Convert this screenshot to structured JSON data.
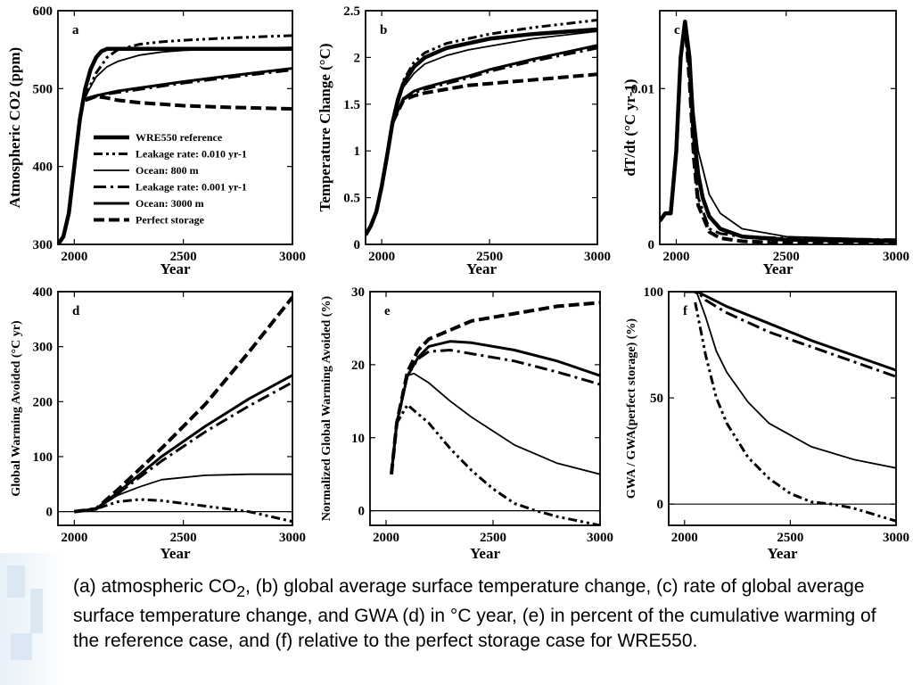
{
  "colors": {
    "line": "#000000",
    "background": "#ffffff"
  },
  "caption": {
    "part1": "(a) atmospheric CO",
    "sub": "2",
    "part2": ", (b) global average surface temperature change, (c) rate of global average surface temperature change, and GWA (d) in °C year, (e) in percent of the cumulative warming of the reference case, and (f) relative to the perfect storage case for WRE550."
  },
  "chart_data": [
    {
      "panel": "a",
      "type": "line",
      "xlabel": "Year",
      "ylabel": "Atmospheric CO2 (ppm)",
      "xlim": [
        1925,
        3000
      ],
      "ylim": [
        300,
        600
      ],
      "xticks": [
        2000,
        2500,
        3000
      ],
      "yticks": [
        300,
        400,
        500,
        600
      ],
      "legend": {
        "placement": "center-left",
        "entries": [
          {
            "label": "WRE550 reference",
            "style": "thick"
          },
          {
            "label": "Leakage rate: 0.010 yr-1",
            "style": "dashdotdot"
          },
          {
            "label": "Ocean:  800 m",
            "style": "thin"
          },
          {
            "label": "Leakage rate: 0.001 yr-1",
            "style": "dashdot"
          },
          {
            "label": "Ocean: 3000 m",
            "style": "solid"
          },
          {
            "label": "Perfect storage",
            "style": "dashed"
          }
        ]
      },
      "series": [
        {
          "style": "thick",
          "x": [
            1925,
            1950,
            1975,
            2000,
            2025,
            2050,
            2075,
            2100,
            2125,
            2150,
            2175,
            2200,
            2300,
            2500,
            3000
          ],
          "y": [
            300,
            310,
            340,
            400,
            460,
            500,
            525,
            540,
            548,
            551,
            551,
            551,
            551,
            551,
            551
          ]
        },
        {
          "style": "dashdotdot",
          "x": [
            2050,
            2100,
            2150,
            2200,
            2300,
            2400,
            2500,
            2700,
            3000
          ],
          "y": [
            490,
            520,
            540,
            550,
            557,
            560,
            562,
            565,
            568
          ]
        },
        {
          "style": "thin",
          "x": [
            2050,
            2100,
            2150,
            2200,
            2300,
            2400,
            2500,
            2700,
            3000
          ],
          "y": [
            490,
            515,
            528,
            535,
            543,
            547,
            549,
            551,
            553
          ]
        },
        {
          "style": "dashdot",
          "x": [
            2050,
            2100,
            2150,
            2200,
            2300,
            2400,
            2500,
            2700,
            3000
          ],
          "y": [
            487,
            490,
            493,
            495,
            499,
            503,
            507,
            514,
            524
          ]
        },
        {
          "style": "solid",
          "x": [
            2050,
            2100,
            2150,
            2200,
            2300,
            2400,
            2500,
            2700,
            3000
          ],
          "y": [
            487,
            491,
            494,
            497,
            501,
            505,
            509,
            516,
            526
          ]
        },
        {
          "style": "dashed",
          "x": [
            2050,
            2100,
            2150,
            2200,
            2300,
            2400,
            2500,
            2700,
            3000
          ],
          "y": [
            485,
            490,
            488,
            485,
            482,
            480,
            478,
            476,
            474
          ]
        }
      ]
    },
    {
      "panel": "b",
      "type": "line",
      "xlabel": "Year",
      "ylabel": "Temperature Change (°C)",
      "xlim": [
        1925,
        3000
      ],
      "ylim": [
        0,
        2.5
      ],
      "xticks": [
        2000,
        2500,
        3000
      ],
      "yticks": [
        0,
        0.5,
        1,
        1.5,
        2,
        2.5
      ],
      "series": [
        {
          "style": "thick",
          "x": [
            1925,
            1950,
            1975,
            2000,
            2025,
            2050,
            2075,
            2100,
            2150,
            2200,
            2300,
            2400,
            2500,
            2700,
            3000
          ],
          "y": [
            0.1,
            0.2,
            0.35,
            0.62,
            0.95,
            1.3,
            1.55,
            1.72,
            1.9,
            2.0,
            2.1,
            2.15,
            2.2,
            2.25,
            2.3
          ]
        },
        {
          "style": "dashdotdot",
          "x": [
            2050,
            2100,
            2150,
            2200,
            2300,
            2400,
            2500,
            2700,
            3000
          ],
          "y": [
            1.3,
            1.75,
            1.95,
            2.05,
            2.15,
            2.2,
            2.25,
            2.32,
            2.4
          ]
        },
        {
          "style": "thin",
          "x": [
            2050,
            2100,
            2150,
            2200,
            2300,
            2400,
            2500,
            2700,
            3000
          ],
          "y": [
            1.3,
            1.68,
            1.83,
            1.93,
            2.02,
            2.08,
            2.12,
            2.2,
            2.28
          ]
        },
        {
          "style": "dashdot",
          "x": [
            2050,
            2100,
            2150,
            2200,
            2300,
            2400,
            2500,
            2700,
            3000
          ],
          "y": [
            1.3,
            1.55,
            1.62,
            1.66,
            1.72,
            1.78,
            1.85,
            1.96,
            2.1
          ]
        },
        {
          "style": "solid",
          "x": [
            2050,
            2100,
            2150,
            2200,
            2300,
            2400,
            2500,
            2700,
            3000
          ],
          "y": [
            1.3,
            1.56,
            1.64,
            1.68,
            1.74,
            1.8,
            1.87,
            1.98,
            2.13
          ]
        },
        {
          "style": "dashed",
          "x": [
            2050,
            2100,
            2150,
            2200,
            2300,
            2400,
            2500,
            2700,
            3000
          ],
          "y": [
            1.3,
            1.54,
            1.59,
            1.62,
            1.66,
            1.7,
            1.72,
            1.76,
            1.82
          ]
        }
      ]
    },
    {
      "panel": "c",
      "type": "line",
      "xlabel": "Year",
      "ylabel": "dT/dt (°C yr-1)",
      "xlim": [
        1925,
        3000
      ],
      "ylim": [
        0,
        0.015
      ],
      "xticks": [
        2000,
        2500,
        3000
      ],
      "yticks": [
        0,
        0.01
      ],
      "series": [
        {
          "style": "thick",
          "x": [
            1925,
            1950,
            1975,
            2000,
            2020,
            2040,
            2060,
            2080,
            2100,
            2120,
            2150,
            2200,
            2300,
            2500,
            3000
          ],
          "y": [
            0.0015,
            0.002,
            0.002,
            0.006,
            0.012,
            0.0143,
            0.012,
            0.007,
            0.0045,
            0.003,
            0.0018,
            0.001,
            0.0005,
            0.0003,
            0.0002
          ]
        },
        {
          "style": "thin",
          "x": [
            2040,
            2060,
            2080,
            2100,
            2150,
            2200,
            2300,
            2500,
            3000
          ],
          "y": [
            0.0143,
            0.0125,
            0.0085,
            0.006,
            0.0032,
            0.002,
            0.001,
            0.0005,
            0.0003
          ]
        },
        {
          "style": "dashdot",
          "x": [
            2040,
            2060,
            2080,
            2100,
            2150,
            2200,
            2300,
            2500,
            3000
          ],
          "y": [
            0.0143,
            0.011,
            0.006,
            0.003,
            0.001,
            0.0007,
            0.0005,
            0.0004,
            0.0003
          ]
        },
        {
          "style": "dashed",
          "x": [
            2040,
            2060,
            2080,
            2100,
            2150,
            2200,
            2300,
            2500,
            3000
          ],
          "y": [
            0.0143,
            0.0105,
            0.0055,
            0.0025,
            0.0008,
            0.0004,
            0.0002,
            0.0001,
            0.0001
          ]
        }
      ]
    },
    {
      "panel": "d",
      "type": "line",
      "xlabel": "Year",
      "ylabel": "Global Warming Avoided (°C yr)",
      "xlim": [
        1925,
        3000
      ],
      "ylim": [
        -25,
        400
      ],
      "xticks": [
        2000,
        2500,
        3000
      ],
      "yticks": [
        0,
        100,
        200,
        300,
        400
      ],
      "series": [
        {
          "style": "dashed",
          "x": [
            2000,
            2100,
            2200,
            2400,
            2600,
            2800,
            3000
          ],
          "y": [
            0,
            5,
            40,
            115,
            195,
            290,
            390
          ]
        },
        {
          "style": "solid",
          "x": [
            2000,
            2100,
            2200,
            2400,
            2600,
            2800,
            3000
          ],
          "y": [
            0,
            5,
            35,
            100,
            155,
            205,
            248
          ]
        },
        {
          "style": "dashdot",
          "x": [
            2000,
            2100,
            2200,
            2400,
            2600,
            2800,
            3000
          ],
          "y": [
            0,
            5,
            33,
            92,
            145,
            192,
            235
          ]
        },
        {
          "style": "thin",
          "x": [
            2000,
            2100,
            2200,
            2300,
            2400,
            2600,
            2800,
            3000
          ],
          "y": [
            0,
            5,
            30,
            45,
            58,
            66,
            68,
            68
          ]
        },
        {
          "style": "dashdotdot",
          "x": [
            2000,
            2100,
            2200,
            2300,
            2400,
            2600,
            2800,
            3000
          ],
          "y": [
            0,
            5,
            18,
            22,
            20,
            10,
            0,
            -18
          ]
        }
      ]
    },
    {
      "panel": "e",
      "type": "line",
      "xlabel": "Year",
      "ylabel": "Normalized Global Warming Avoided (%)",
      "xlim": [
        1925,
        3000
      ],
      "ylim": [
        -2,
        30
      ],
      "xticks": [
        2000,
        2500,
        3000
      ],
      "yticks": [
        0,
        10,
        20,
        30
      ],
      "series": [
        {
          "style": "dashed",
          "x": [
            2025,
            2050,
            2100,
            2150,
            2200,
            2400,
            2600,
            2800,
            3000
          ],
          "y": [
            5,
            12,
            19,
            22,
            23.5,
            26,
            27,
            28,
            28.5
          ]
        },
        {
          "style": "solid",
          "x": [
            2025,
            2050,
            2100,
            2150,
            2200,
            2300,
            2400,
            2600,
            2800,
            3000
          ],
          "y": [
            5,
            12,
            18.5,
            21,
            22.5,
            23.2,
            23,
            22,
            20.5,
            18.5
          ]
        },
        {
          "style": "dashdot",
          "x": [
            2025,
            2050,
            2100,
            2150,
            2200,
            2300,
            2400,
            2600,
            2800,
            3000
          ],
          "y": [
            5,
            12,
            18.5,
            20.8,
            21.8,
            22,
            21.5,
            20.5,
            19,
            17.3
          ]
        },
        {
          "style": "thin",
          "x": [
            2025,
            2050,
            2100,
            2130,
            2200,
            2300,
            2400,
            2600,
            2800,
            3000
          ],
          "y": [
            5,
            12,
            18.5,
            18.8,
            17.5,
            15,
            12.8,
            9,
            6.5,
            5
          ]
        },
        {
          "style": "dashdotdot",
          "x": [
            2025,
            2050,
            2100,
            2200,
            2300,
            2400,
            2500,
            2600,
            2700,
            2800,
            3000
          ],
          "y": [
            5,
            12,
            14.5,
            12,
            8.5,
            5.5,
            3,
            1,
            0,
            -0.8,
            -2
          ]
        }
      ]
    },
    {
      "panel": "f",
      "type": "line",
      "xlabel": "Year",
      "ylabel": "GWA / GWA(perfect storage) (%)",
      "xlim": [
        1925,
        3000
      ],
      "ylim": [
        -10,
        100
      ],
      "xticks": [
        2000,
        2500,
        3000
      ],
      "yticks": [
        0,
        50,
        100
      ],
      "series": [
        {
          "style": "solid",
          "x": [
            2000,
            2060,
            2100,
            2200,
            2400,
            2600,
            2800,
            3000
          ],
          "y": [
            100,
            100,
            98,
            93,
            85,
            77,
            70,
            63
          ]
        },
        {
          "style": "dashdot",
          "x": [
            2000,
            2060,
            2100,
            2200,
            2400,
            2600,
            2800,
            3000
          ],
          "y": [
            100,
            100,
            96,
            90,
            81,
            74,
            67,
            60
          ]
        },
        {
          "style": "thin",
          "x": [
            2040,
            2060,
            2100,
            2150,
            2200,
            2300,
            2400,
            2600,
            2800,
            3000
          ],
          "y": [
            100,
            99,
            88,
            72,
            62,
            48,
            38,
            27,
            21,
            17
          ]
        },
        {
          "style": "dashdotdot",
          "x": [
            2050,
            2100,
            2150,
            2200,
            2300,
            2400,
            2500,
            2600,
            2700,
            2800,
            3000
          ],
          "y": [
            95,
            70,
            50,
            38,
            22,
            12,
            5,
            1,
            0,
            -2,
            -8
          ]
        }
      ]
    }
  ]
}
